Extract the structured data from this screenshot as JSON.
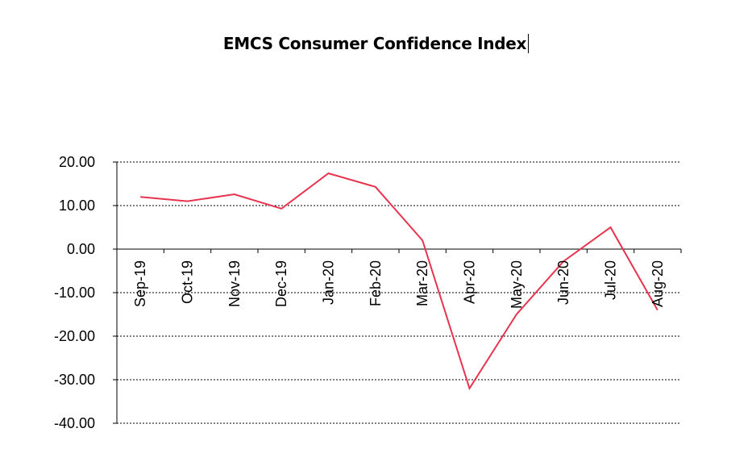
{
  "chart_data": {
    "type": "line",
    "title": "EMCS Consumer Confidence Index",
    "xlabel": "",
    "ylabel": "",
    "categories": [
      "Sep-19",
      "Oct-19",
      "Nov-19",
      "Dec-19",
      "Jan-20",
      "Feb-20",
      "Mar-20",
      "Apr-20",
      "May-20",
      "Jun-20",
      "Jul-20",
      "Aug-20"
    ],
    "series": [
      {
        "name": "EMCS Consumer Confidence Index",
        "color": "#e8334f",
        "values": [
          12.0,
          11.0,
          12.6,
          9.3,
          17.4,
          14.3,
          2.0,
          -32.0,
          -15.0,
          -2.8,
          5.0,
          -14.0
        ]
      }
    ],
    "ylim": [
      -40,
      20
    ],
    "yticks": [
      20,
      10,
      0,
      -10,
      -20,
      -30,
      -40
    ],
    "ytick_labels": [
      "20.00",
      "10.00",
      "0.00",
      "-10.00",
      "-20.00",
      "-30.00",
      "-40.00"
    ],
    "grid": "horizontal-dotted",
    "legend": "none"
  }
}
